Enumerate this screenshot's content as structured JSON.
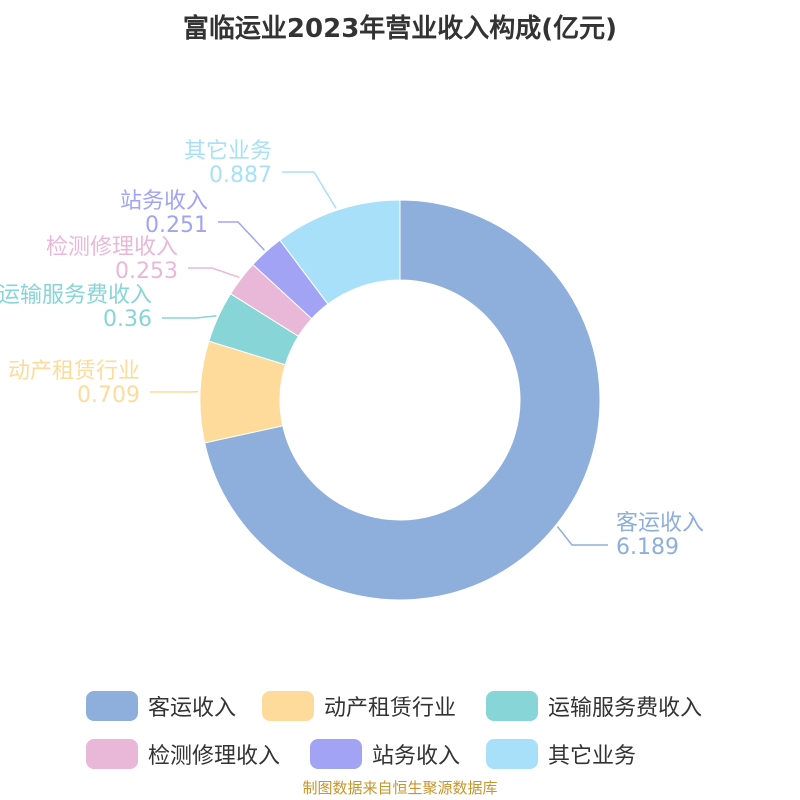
{
  "title": "富临运业2023年营业收入构成(亿元)",
  "source_note": "制图数据来自恒生聚源数据库",
  "chart_data": {
    "type": "pie",
    "subtype": "donut",
    "title": "富临运业2023年营业收入构成(亿元)",
    "categories": [
      "客运收入",
      "动产租赁行业",
      "运输服务费收入",
      "检测修理收入",
      "站务收入",
      "其它业务"
    ],
    "values": [
      6.189,
      0.709,
      0.36,
      0.253,
      0.251,
      0.887
    ],
    "value_labels": [
      "6.189",
      "0.709",
      "0.36",
      "0.253",
      "0.251",
      "0.887"
    ],
    "colors": [
      "#8eaedb",
      "#fedb9b",
      "#87d5d6",
      "#e9b8d8",
      "#a2a3f5",
      "#a8e0fa"
    ],
    "legend_position": "bottom"
  }
}
